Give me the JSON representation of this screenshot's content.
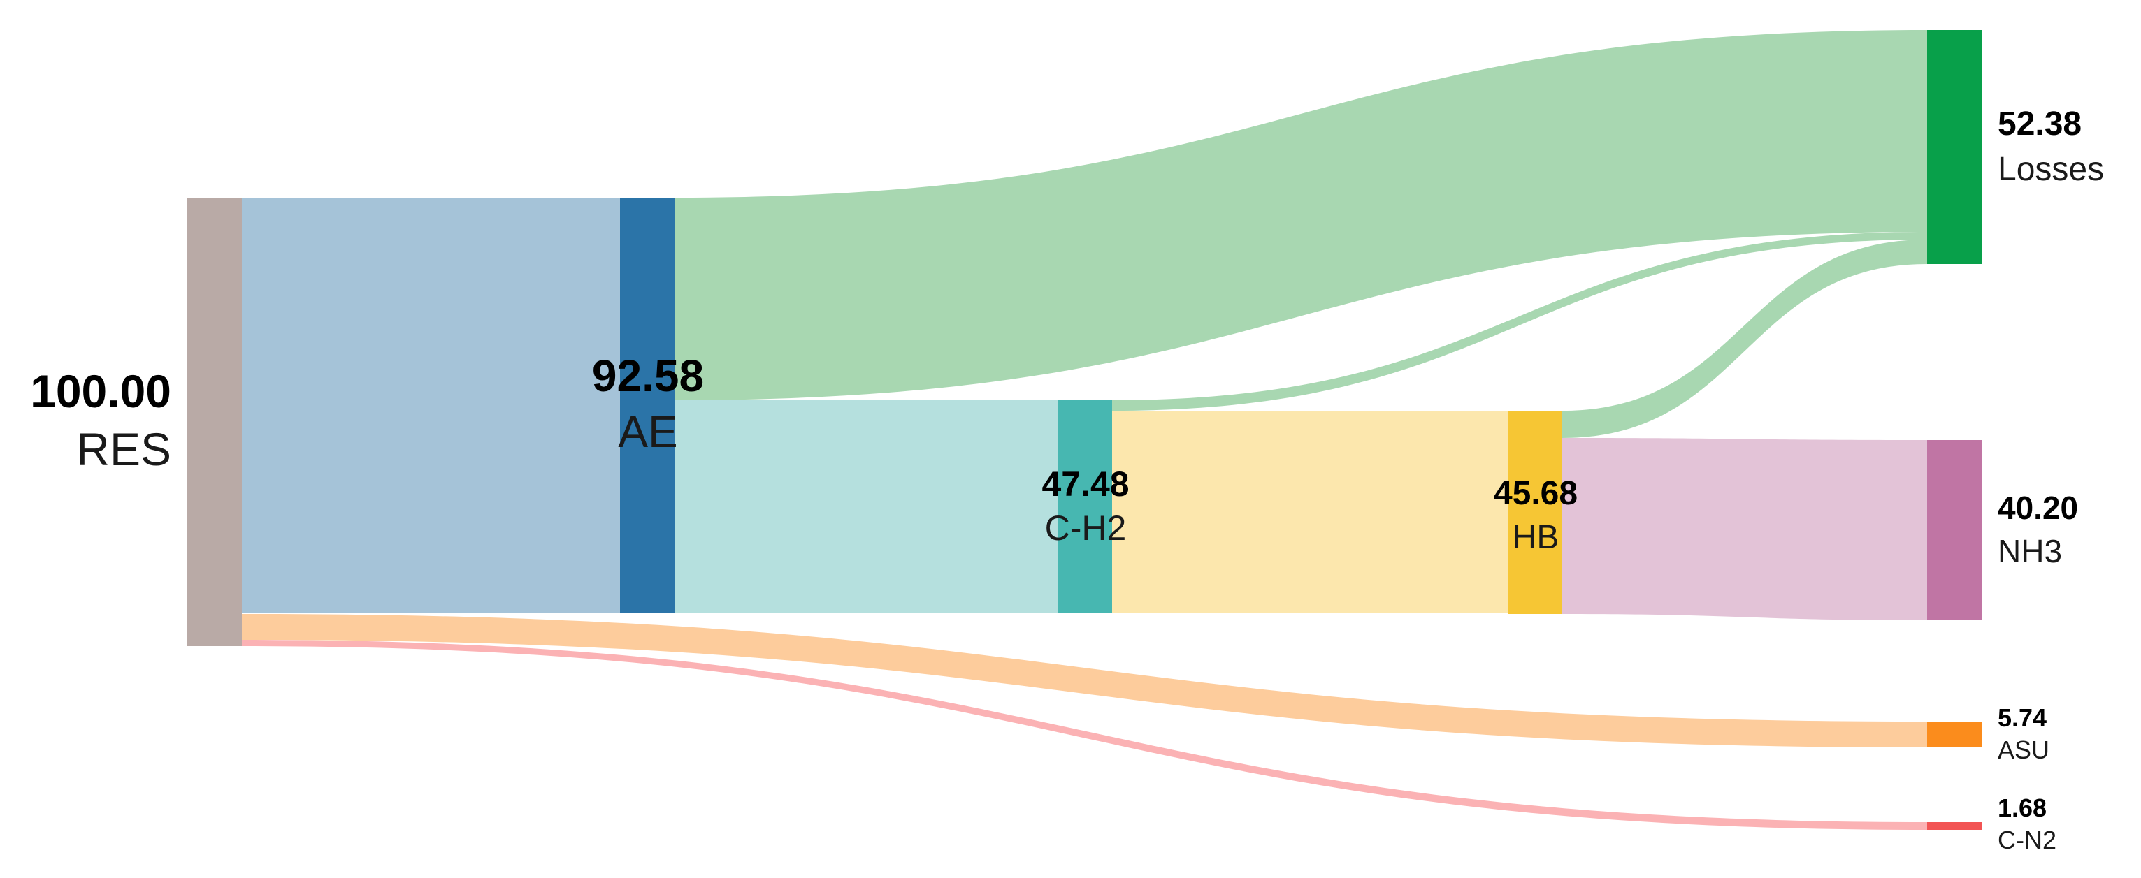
{
  "chart_data": {
    "type": "sankey",
    "nodes": [
      {
        "id": "RES",
        "value": "100.00",
        "label": "RES",
        "color": "#b9aaa6"
      },
      {
        "id": "AE",
        "value": "92.58",
        "label": "AE",
        "color": "#2b74a8"
      },
      {
        "id": "C-H2",
        "value": "47.48",
        "label": "C-H2",
        "color": "#47b7b1"
      },
      {
        "id": "HB",
        "value": "45.68",
        "label": "HB",
        "color": "#f6c634"
      },
      {
        "id": "Losses",
        "value": "52.38",
        "label": "Losses",
        "color": "#08a04a"
      },
      {
        "id": "NH3",
        "value": "40.20",
        "label": "NH3",
        "color": "#c075a4"
      },
      {
        "id": "ASU",
        "value": "5.74",
        "label": "ASU",
        "color": "#fb8c1c"
      },
      {
        "id": "C-N2",
        "value": "1.68",
        "label": "C-N2",
        "color": "#f25454"
      }
    ],
    "links": [
      {
        "source": "RES",
        "target": "AE",
        "value": 92.58,
        "color": "#a5c3d8"
      },
      {
        "source": "RES",
        "target": "ASU",
        "value": 5.74,
        "color": "#fdcc9c"
      },
      {
        "source": "RES",
        "target": "C-N2",
        "value": 1.68,
        "color": "#fbb2b4"
      },
      {
        "source": "AE",
        "target": "Losses",
        "value": 45.1,
        "color": "#a8d7b1"
      },
      {
        "source": "AE",
        "target": "C-H2",
        "value": 47.48,
        "color": "#b5e0de"
      },
      {
        "source": "C-H2",
        "target": "Losses",
        "value": 1.8,
        "color": "#a8d7b1"
      },
      {
        "source": "C-H2",
        "target": "HB",
        "value": 45.68,
        "color": "#fce7ad"
      },
      {
        "source": "HB",
        "target": "Losses",
        "value": 5.48,
        "color": "#a8d7b1"
      },
      {
        "source": "HB",
        "target": "NH3",
        "value": 40.2,
        "color": "#e3c3d7"
      }
    ]
  }
}
